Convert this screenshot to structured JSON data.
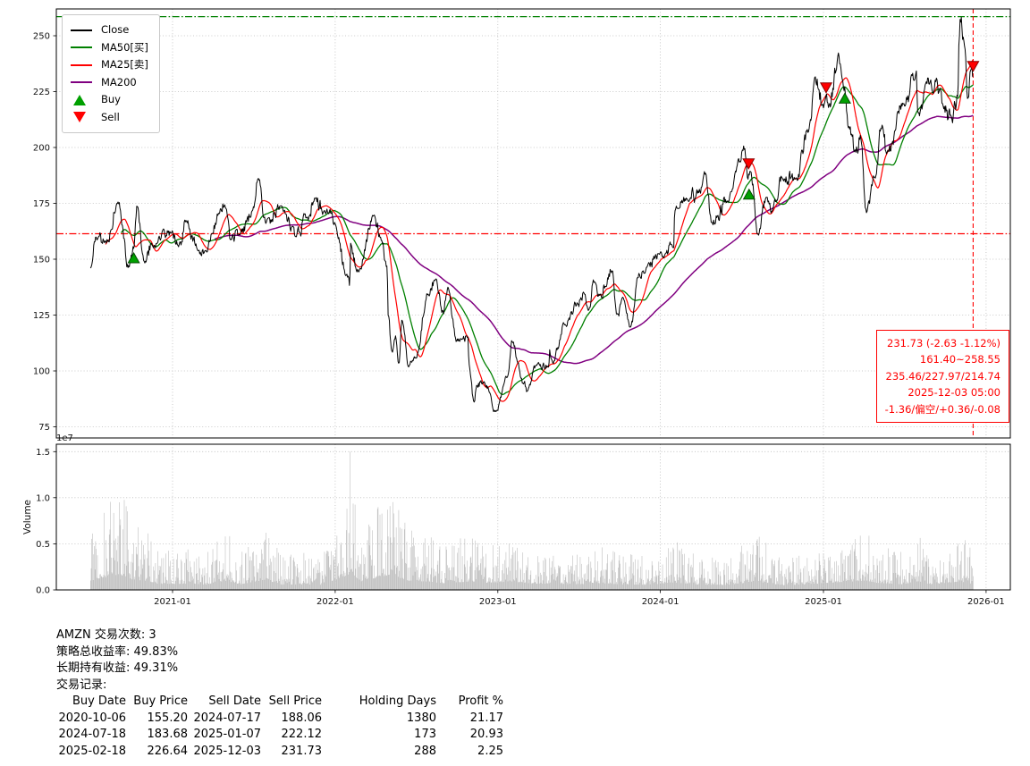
{
  "chart_data": {
    "type": "line",
    "symbol": "AMZN",
    "x_tick_labels": [
      "2021-01",
      "2022-01",
      "2023-01",
      "2024-01",
      "2025-01",
      "2026-01"
    ],
    "price_ticks": [
      75,
      100,
      125,
      150,
      175,
      200,
      225,
      250
    ],
    "price_range": [
      70,
      262
    ],
    "volume_ticks": [
      0,
      0.5,
      1,
      1.5
    ],
    "volume_range": [
      0,
      1.58
    ],
    "volume_scale_label": "1e7",
    "ylabel_volume": "Volume",
    "series": [
      {
        "name": "Close",
        "color": "#000000"
      },
      {
        "name": "MA50[买]",
        "color": "#008000",
        "window": 50
      },
      {
        "name": "MA25[卖]",
        "color": "#ff0000",
        "window": 25
      },
      {
        "name": "MA200",
        "color": "#800080",
        "window": 200
      }
    ],
    "hlines": [
      {
        "value": 258.55,
        "color": "#008000"
      },
      {
        "value": 161.4,
        "color": "#ff0000"
      }
    ],
    "vline": {
      "date": "2025-12-03",
      "color": "#ff0000"
    },
    "buys": [
      [
        "2020-10-06",
        155.2
      ],
      [
        "2024-07-18",
        183.68
      ],
      [
        "2025-02-18",
        226.64
      ]
    ],
    "sells": [
      [
        "2024-07-17",
        188.06
      ],
      [
        "2025-01-07",
        222.12
      ],
      [
        "2025-12-03",
        231.73
      ]
    ],
    "marker_colors": {
      "buy": "#00a000",
      "buy_edge": "#004d00",
      "sell": "#ff0000",
      "sell_edge": "#8b0000"
    },
    "close_anchors": [
      [
        "2020-07-01",
        146.0
      ],
      [
        "2020-07-13",
        159.5
      ],
      [
        "2020-08-03",
        158.0
      ],
      [
        "2020-09-02",
        174.8
      ],
      [
        "2020-09-24",
        146.8
      ],
      [
        "2020-10-06",
        155.2
      ],
      [
        "2020-10-13",
        173.5
      ],
      [
        "2020-10-30",
        148.5
      ],
      [
        "2020-11-16",
        156.5
      ],
      [
        "2020-12-01",
        160.5
      ],
      [
        "2020-12-31",
        162.8
      ],
      [
        "2021-01-14",
        155.5
      ],
      [
        "2021-02-02",
        167.2
      ],
      [
        "2021-02-26",
        154.6
      ],
      [
        "2021-03-15",
        153.5
      ],
      [
        "2021-04-16",
        170.0
      ],
      [
        "2021-04-30",
        173.4
      ],
      [
        "2021-05-12",
        159.0
      ],
      [
        "2021-06-01",
        161.5
      ],
      [
        "2021-06-30",
        172.0
      ],
      [
        "2021-07-12",
        186.0
      ],
      [
        "2021-07-30",
        166.4
      ],
      [
        "2021-08-31",
        173.5
      ],
      [
        "2021-09-30",
        164.3
      ],
      [
        "2021-10-04",
        159.5
      ],
      [
        "2021-10-29",
        168.6
      ],
      [
        "2021-11-18",
        177.0
      ],
      [
        "2021-12-10",
        170.0
      ],
      [
        "2021-12-31",
        166.7
      ],
      [
        "2022-01-28",
        143.5
      ],
      [
        "2022-02-03",
        138.8
      ],
      [
        "2022-02-04",
        157.0
      ],
      [
        "2022-02-23",
        144.3
      ],
      [
        "2022-03-29",
        169.3
      ],
      [
        "2022-04-13",
        159.8
      ],
      [
        "2022-04-28",
        146.0
      ],
      [
        "2022-04-29",
        124.3
      ],
      [
        "2022-05-09",
        108.0
      ],
      [
        "2022-05-17",
        115.5
      ],
      [
        "2022-05-24",
        103.7
      ],
      [
        "2022-06-01",
        122.3
      ],
      [
        "2022-06-14",
        102.2
      ],
      [
        "2022-06-30",
        106.2
      ],
      [
        "2022-07-29",
        134.9
      ],
      [
        "2022-08-15",
        140.5
      ],
      [
        "2022-08-31",
        126.8
      ],
      [
        "2022-09-12",
        136.5
      ],
      [
        "2022-09-30",
        113.0
      ],
      [
        "2022-10-26",
        115.0
      ],
      [
        "2022-10-28",
        103.4
      ],
      [
        "2022-11-09",
        86.1
      ],
      [
        "2022-11-15",
        93.5
      ],
      [
        "2022-12-01",
        95.5
      ],
      [
        "2022-12-28",
        81.8
      ],
      [
        "2023-01-23",
        97.5
      ],
      [
        "2023-02-02",
        112.9
      ],
      [
        "2023-02-28",
        94.2
      ],
      [
        "2023-03-08",
        91.0
      ],
      [
        "2023-03-31",
        103.3
      ],
      [
        "2023-04-25",
        102.0
      ],
      [
        "2023-04-27",
        109.8
      ],
      [
        "2023-05-04",
        103.9
      ],
      [
        "2023-05-31",
        120.6
      ],
      [
        "2023-06-30",
        130.4
      ],
      [
        "2023-07-13",
        134.3
      ],
      [
        "2023-07-27",
        128.2
      ],
      [
        "2023-08-04",
        139.6
      ],
      [
        "2023-08-18",
        133.2
      ],
      [
        "2023-08-31",
        138.0
      ],
      [
        "2023-09-14",
        144.9
      ],
      [
        "2023-09-26",
        126.0
      ],
      [
        "2023-10-11",
        131.8
      ],
      [
        "2023-10-26",
        119.6
      ],
      [
        "2023-11-15",
        143.2
      ],
      [
        "2023-11-30",
        146.1
      ],
      [
        "2023-12-29",
        151.9
      ],
      [
        "2024-01-31",
        155.2
      ],
      [
        "2024-02-02",
        171.8
      ],
      [
        "2024-02-29",
        176.8
      ],
      [
        "2024-03-27",
        179.8
      ],
      [
        "2024-04-11",
        189.0
      ],
      [
        "2024-04-25",
        166.5
      ],
      [
        "2024-05-31",
        176.4
      ],
      [
        "2024-06-28",
        193.3
      ],
      [
        "2024-07-08",
        199.8
      ],
      [
        "2024-07-17",
        188.1
      ],
      [
        "2024-07-26",
        182.5
      ],
      [
        "2024-08-05",
        161.0
      ],
      [
        "2024-08-26",
        177.0
      ],
      [
        "2024-09-06",
        171.4
      ],
      [
        "2024-09-30",
        186.3
      ],
      [
        "2024-10-31",
        186.4
      ],
      [
        "2024-11-29",
        207.9
      ],
      [
        "2024-12-13",
        230.7
      ],
      [
        "2024-12-31",
        219.4
      ],
      [
        "2025-01-07",
        222.1
      ],
      [
        "2025-01-13",
        218.5
      ],
      [
        "2025-02-04",
        242.1
      ],
      [
        "2025-02-18",
        226.6
      ],
      [
        "2025-02-27",
        208.7
      ],
      [
        "2025-03-14",
        198.0
      ],
      [
        "2025-03-25",
        205.7
      ],
      [
        "2025-04-08",
        170.7
      ],
      [
        "2025-04-24",
        186.5
      ],
      [
        "2025-05-13",
        210.2
      ],
      [
        "2025-05-23",
        197.5
      ],
      [
        "2025-06-30",
        219.4
      ],
      [
        "2025-07-28",
        232.8
      ],
      [
        "2025-08-01",
        214.8
      ],
      [
        "2025-08-29",
        228.8
      ],
      [
        "2025-09-11",
        231.0
      ],
      [
        "2025-09-26",
        219.5
      ],
      [
        "2025-10-16",
        213.0
      ],
      [
        "2025-10-30",
        222.9
      ],
      [
        "2025-10-31",
        244.2
      ],
      [
        "2025-11-04",
        258.0
      ],
      [
        "2025-11-13",
        245.0
      ],
      [
        "2025-11-21",
        221.5
      ],
      [
        "2025-11-28",
        234.0
      ],
      [
        "2025-12-03",
        231.73
      ]
    ],
    "volume_anchors": [
      [
        "2020-07-01",
        0.5
      ],
      [
        "2020-09-04",
        0.85
      ],
      [
        "2020-10-01",
        0.55
      ],
      [
        "2020-11-02",
        0.5
      ],
      [
        "2020-12-01",
        0.32
      ],
      [
        "2021-02-01",
        0.33
      ],
      [
        "2021-03-15",
        0.28
      ],
      [
        "2021-04-30",
        0.5
      ],
      [
        "2021-06-01",
        0.3
      ],
      [
        "2021-07-30",
        0.55
      ],
      [
        "2021-09-01",
        0.28
      ],
      [
        "2021-10-15",
        0.3
      ],
      [
        "2021-12-01",
        0.28
      ],
      [
        "2022-01-28",
        0.78
      ],
      [
        "2022-02-04",
        0.95
      ],
      [
        "2022-03-01",
        0.45
      ],
      [
        "2022-04-29",
        0.8
      ],
      [
        "2022-05-13",
        0.75
      ],
      [
        "2022-06-15",
        0.5
      ],
      [
        "2022-07-29",
        0.45
      ],
      [
        "2022-09-01",
        0.35
      ],
      [
        "2022-10-28",
        0.45
      ],
      [
        "2022-12-01",
        0.38
      ],
      [
        "2023-02-03",
        0.45
      ],
      [
        "2023-04-01",
        0.32
      ],
      [
        "2023-05-01",
        0.35
      ],
      [
        "2023-07-01",
        0.28
      ],
      [
        "2023-08-04",
        0.38
      ],
      [
        "2023-10-01",
        0.3
      ],
      [
        "2023-12-01",
        0.27
      ],
      [
        "2024-02-02",
        0.4
      ],
      [
        "2024-04-01",
        0.28
      ],
      [
        "2024-06-01",
        0.27
      ],
      [
        "2024-08-05",
        0.45
      ],
      [
        "2024-10-01",
        0.25
      ],
      [
        "2024-12-01",
        0.3
      ],
      [
        "2025-02-04",
        0.42
      ],
      [
        "2025-04-08",
        0.5
      ],
      [
        "2025-05-01",
        0.38
      ],
      [
        "2025-07-01",
        0.3
      ],
      [
        "2025-08-01",
        0.45
      ],
      [
        "2025-09-01",
        0.3
      ],
      [
        "2025-10-31",
        0.45
      ],
      [
        "2025-11-21",
        0.4
      ],
      [
        "2025-12-03",
        0.3
      ]
    ],
    "volume_spikes": [
      [
        "2020-09-04",
        0.95
      ],
      [
        "2021-04-30",
        0.58
      ],
      [
        "2021-07-30",
        0.62
      ],
      [
        "2022-01-28",
        0.88
      ],
      [
        "2022-02-04",
        1.5
      ],
      [
        "2022-04-29",
        0.87
      ],
      [
        "2022-05-12",
        0.83
      ],
      [
        "2024-08-05",
        0.55
      ],
      [
        "2025-10-31",
        0.5
      ]
    ]
  },
  "legend": {
    "items": [
      {
        "label": "Close",
        "type": "line",
        "color": "#000000"
      },
      {
        "label": "MA50[买]",
        "type": "line",
        "color": "#008000"
      },
      {
        "label": "MA25[卖]",
        "type": "line",
        "color": "#ff0000"
      },
      {
        "label": "MA200",
        "type": "line",
        "color": "#800080"
      },
      {
        "label": "Buy",
        "type": "triangle-up",
        "color": "#00a000"
      },
      {
        "label": "Sell",
        "type": "triangle-down",
        "color": "#ff0000"
      }
    ]
  },
  "annotation": {
    "color": "#ff0000",
    "lines": [
      "231.73 (-2.63 -1.12%)",
      "161.40~258.55",
      "235.46/227.97/214.74",
      "2025-12-03 05:00",
      "-1.36/偏空/+0.36/-0.08"
    ]
  },
  "stats": {
    "trade_count_line": "AMZN 交易次数: 3",
    "strategy_return_line": "策略总收益率: 49.83%",
    "buyhold_return_line": "长期持有收益: 49.31%",
    "trade_log_label": "交易记录:",
    "table": {
      "headers": [
        "Buy Date",
        "Buy Price",
        "Sell Date",
        "Sell Price",
        "Holding Days",
        "Profit %"
      ],
      "rows": [
        [
          "2020-10-06",
          "155.20",
          "2024-07-17",
          "188.06",
          "1380",
          "21.17"
        ],
        [
          "2024-07-18",
          "183.68",
          "2025-01-07",
          "222.12",
          "173",
          "20.93"
        ],
        [
          "2025-02-18",
          "226.64",
          "2025-12-03",
          "231.73",
          "288",
          "2.25"
        ]
      ]
    }
  }
}
